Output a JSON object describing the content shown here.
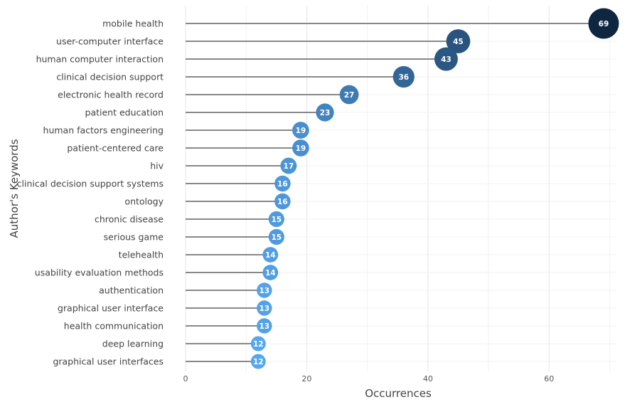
{
  "chart_data": {
    "type": "lollipop",
    "orientation": "horizontal",
    "xlabel": "Occurrences",
    "ylabel": "Author's Keywords",
    "xlim": [
      0,
      71
    ],
    "xticks": [
      0,
      20,
      40,
      60
    ],
    "grid": true,
    "categories": [
      "mobile health",
      "user-computer interface",
      "human computer interaction",
      "clinical decision support",
      "electronic health record",
      "patient education",
      "human factors engineering",
      "patient-centered care",
      "hiv",
      "clinical decision support systems",
      "ontology",
      "chronic disease",
      "serious game",
      "telehealth",
      "usability evaluation methods",
      "authentication",
      "graphical user interface",
      "health communication",
      "deep learning",
      "graphical user interfaces"
    ],
    "values": [
      69,
      45,
      43,
      36,
      27,
      23,
      19,
      19,
      17,
      16,
      16,
      15,
      15,
      14,
      14,
      13,
      13,
      13,
      12,
      12
    ],
    "color_scale": {
      "low": "#56a7ee",
      "high": "#0f2640"
    },
    "stem_color": "#888888"
  }
}
